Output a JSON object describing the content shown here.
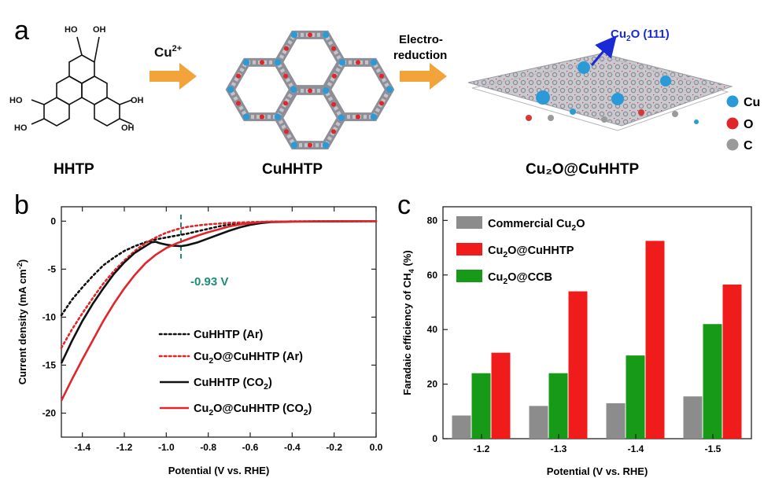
{
  "panel_a": {
    "label": "a",
    "molecules": {
      "hhtp": "HHTP",
      "cuhhtp": "CuHHTP",
      "cu2o": "Cu₂O@CuHHTP"
    },
    "oh_label": "OH",
    "ho_label": "HO",
    "arrow1": "Cu2+",
    "arrow2_line1": "Electro-",
    "arrow2_line2": "reduction",
    "callout": "Cu2O (111)",
    "legend": [
      "Cu",
      "O",
      "C"
    ],
    "colors": {
      "arrow": "#f2a33a",
      "cu": "#2c9ad6",
      "o": "#e0262b",
      "c": "#9a9a9a",
      "callout": "#1a2bd6"
    }
  },
  "panel_b": {
    "label": "b"
  },
  "panel_c": {
    "label": "c"
  },
  "chart_data": [
    {
      "type": "line",
      "xlabel": "Potential (V vs. RHE)",
      "ylabel": "Current density (mA cm⁻²)",
      "xlim": [
        -1.5,
        0.0
      ],
      "ylim": [
        -22.5,
        1.5
      ],
      "xticks": [
        "-1.4",
        "-1.2",
        "-1.0",
        "-0.8",
        "-0.6",
        "-0.4",
        "-0.2",
        "0.0"
      ],
      "yticks": [
        "0",
        "-5",
        "-10",
        "-15",
        "-20"
      ],
      "annotation": {
        "text": "-0.93 V",
        "x": -0.93,
        "color": "#1f8c7a"
      },
      "series": [
        {
          "name": "CuHHTP (Ar)",
          "color": "#111111",
          "style": "dotted",
          "x": [
            -1.5,
            -1.45,
            -1.4,
            -1.35,
            -1.3,
            -1.25,
            -1.2,
            -1.15,
            -1.1,
            -1.05,
            -1.0,
            -0.95,
            -0.9,
            -0.85,
            -0.8,
            -0.75,
            -0.7,
            -0.65,
            -0.6,
            -0.5,
            -0.4,
            -0.3,
            -0.2,
            -0.1,
            0.0
          ],
          "y": [
            -9.8,
            -8.2,
            -6.9,
            -5.7,
            -4.6,
            -3.8,
            -3.1,
            -2.6,
            -2.2,
            -1.9,
            -1.7,
            -1.5,
            -1.3,
            -1.05,
            -0.8,
            -0.55,
            -0.35,
            -0.2,
            -0.12,
            -0.06,
            -0.03,
            -0.02,
            -0.01,
            0.0,
            0.0
          ]
        },
        {
          "name": "Cu2O@CuHHTP (Ar)",
          "color": "#e0262b",
          "style": "dotted",
          "x": [
            -1.5,
            -1.45,
            -1.4,
            -1.35,
            -1.3,
            -1.25,
            -1.2,
            -1.15,
            -1.1,
            -1.05,
            -1.0,
            -0.95,
            -0.9,
            -0.85,
            -0.8,
            -0.75,
            -0.7,
            -0.6,
            -0.5,
            -0.4,
            -0.3,
            -0.2,
            -0.1,
            0.0
          ],
          "y": [
            -13.2,
            -11.3,
            -9.6,
            -8.0,
            -6.5,
            -5.2,
            -4.1,
            -3.1,
            -2.3,
            -1.7,
            -1.2,
            -0.85,
            -0.6,
            -0.45,
            -0.33,
            -0.25,
            -0.18,
            -0.1,
            -0.05,
            -0.03,
            -0.02,
            -0.01,
            0.0,
            0.0
          ]
        },
        {
          "name": "CuHHTP (CO2)",
          "color": "#111111",
          "style": "solid",
          "x": [
            -1.5,
            -1.45,
            -1.4,
            -1.35,
            -1.3,
            -1.25,
            -1.2,
            -1.15,
            -1.1,
            -1.07,
            -1.05,
            -1.03,
            -1.0,
            -0.97,
            -0.93,
            -0.9,
            -0.85,
            -0.8,
            -0.75,
            -0.7,
            -0.65,
            -0.6,
            -0.55,
            -0.5,
            -0.4,
            -0.3,
            -0.2,
            -0.1,
            0.0
          ],
          "y": [
            -14.8,
            -12.5,
            -10.4,
            -8.6,
            -7.0,
            -5.5,
            -4.3,
            -3.3,
            -2.6,
            -2.2,
            -2.15,
            -2.3,
            -2.45,
            -2.55,
            -2.6,
            -2.5,
            -2.2,
            -1.8,
            -1.4,
            -1.0,
            -0.65,
            -0.38,
            -0.2,
            -0.1,
            -0.05,
            -0.03,
            -0.02,
            -0.01,
            0.0
          ]
        },
        {
          "name": "Cu2O@CuHHTP (CO2)",
          "color": "#e0262b",
          "style": "solid",
          "x": [
            -1.5,
            -1.45,
            -1.4,
            -1.35,
            -1.3,
            -1.25,
            -1.2,
            -1.15,
            -1.1,
            -1.05,
            -1.0,
            -0.95,
            -0.9,
            -0.85,
            -0.8,
            -0.75,
            -0.7,
            -0.65,
            -0.6,
            -0.55,
            -0.5,
            -0.4,
            -0.3,
            -0.2,
            -0.1,
            0.0
          ],
          "y": [
            -18.7,
            -16.5,
            -14.4,
            -12.4,
            -10.4,
            -8.6,
            -7.0,
            -5.6,
            -4.4,
            -3.5,
            -2.8,
            -2.3,
            -1.9,
            -1.5,
            -1.15,
            -0.85,
            -0.55,
            -0.35,
            -0.2,
            -0.1,
            -0.06,
            -0.03,
            -0.02,
            -0.01,
            0.0,
            0.0
          ]
        }
      ]
    },
    {
      "type": "bar",
      "xlabel": "Potential (V vs. RHE)",
      "ylabel": "Faradaic efficiency of CH₄ (%)",
      "ylim": [
        0,
        85
      ],
      "yticks": [
        "0",
        "20",
        "40",
        "60",
        "80"
      ],
      "categories": [
        "-1.2",
        "-1.3",
        "-1.4",
        "-1.5"
      ],
      "series": [
        {
          "name": "Commercial Cu₂O",
          "color": "#8c8c8c",
          "values": [
            8.5,
            12,
            13,
            15.5
          ]
        },
        {
          "name": "Cu₂O@CuHHTP",
          "color": "#f01b1b",
          "values": [
            31.5,
            54,
            72.5,
            56.5
          ]
        },
        {
          "name": "Cu₂O@CCB",
          "color": "#179a17",
          "values": [
            24,
            24,
            30.5,
            42
          ]
        }
      ],
      "legend": "top-left"
    }
  ]
}
